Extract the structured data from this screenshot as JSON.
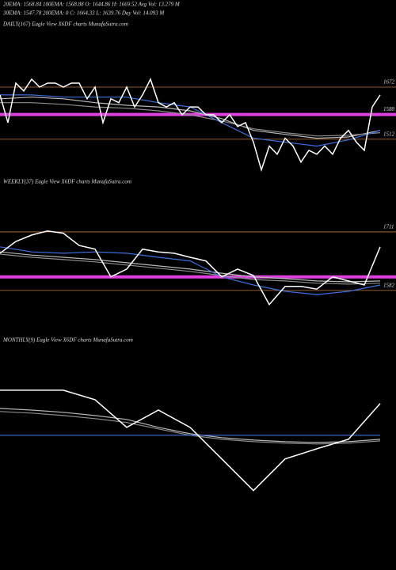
{
  "header": [
    "20EMA: 1568.84     100EMA: 1568.88     O: 1644.86     H: 1669.52     Avg Vol: 13.279 M",
    "30EMA: 1547.78     200EMA: 0     C: 1664.33     L: 1639.76     Day Vol: 14.093 M"
  ],
  "chart_data": [
    {
      "type": "line",
      "title": "DAILY(167) Eagle   View   X6DF charts MunafaSutra.com",
      "ylim": [
        1417,
        1854
      ],
      "yticks": [
        1672,
        1588,
        1512
      ],
      "levels": [
        {
          "value": 1672,
          "color": "#c0763a"
        },
        {
          "value": 1588,
          "color": "#e040e0"
        },
        {
          "value": 1512,
          "color": "#c0763a"
        }
      ],
      "series": [
        {
          "color": "#b8b8b8",
          "values": [
            1636,
            1641,
            1636,
            1624,
            1616,
            1611,
            1599,
            1575,
            1539,
            1527,
            1515,
            1519,
            1539
          ]
        },
        {
          "color": "#8c8c8c",
          "values": [
            1624,
            1624,
            1619,
            1611,
            1607,
            1599,
            1587,
            1568,
            1544,
            1532,
            1522,
            1524,
            1532
          ]
        },
        {
          "color": "#3a6fe0",
          "values": [
            1648,
            1648,
            1641,
            1641,
            1641,
            1624,
            1611,
            1563,
            1515,
            1503,
            1491,
            1510,
            1539
          ]
        },
        {
          "color": "#ffffff",
          "values": [
            1648,
            1563,
            1684,
            1660,
            1696,
            1672,
            1684,
            1684,
            1672,
            1684,
            1684,
            1636,
            1672,
            1563,
            1636,
            1624,
            1672,
            1611,
            1648,
            1696,
            1624,
            1611,
            1624,
            1587,
            1611,
            1611,
            1587,
            1587,
            1563,
            1587,
            1551,
            1563,
            1503,
            1418,
            1491,
            1466,
            1515,
            1491,
            1442,
            1478,
            1466,
            1491,
            1466,
            1515,
            1539,
            1503,
            1478,
            1611,
            1648
          ]
        }
      ]
    },
    {
      "type": "line",
      "title": "WEEKLY(37) Eagle   View   X6DF charts MunafaSutra.com",
      "ylim": [
        1533,
        1812
      ],
      "yticks": [
        1711,
        1582
      ],
      "levels": [
        {
          "value": 1711,
          "color": "#c0763a"
        },
        {
          "value": 1612,
          "color": "#e040e0"
        },
        {
          "value": 1582,
          "color": "#c0763a"
        }
      ],
      "series": [
        {
          "color": "#b8b8b8",
          "values": [
            1667,
            1660,
            1655,
            1650,
            1643,
            1636,
            1629,
            1620,
            1612,
            1608,
            1603,
            1601,
            1603
          ]
        },
        {
          "color": "#8c8c8c",
          "values": [
            1662,
            1655,
            1650,
            1645,
            1638,
            1631,
            1624,
            1615,
            1606,
            1603,
            1598,
            1596,
            1598
          ]
        },
        {
          "color": "#3a6fe0",
          "values": [
            1678,
            1667,
            1664,
            1667,
            1664,
            1655,
            1647,
            1612,
            1594,
            1580,
            1573,
            1580,
            1594
          ]
        },
        {
          "color": "#ffffff",
          "values": [
            1664,
            1690,
            1704,
            1713,
            1708,
            1681,
            1673,
            1612,
            1629,
            1673,
            1667,
            1664,
            1655,
            1647,
            1612,
            1629,
            1615,
            1551,
            1591,
            1591,
            1585,
            1612,
            1603,
            1594,
            1678
          ]
        }
      ]
    },
    {
      "type": "line",
      "title": "MONTHLY(9) Eagle   View   X6DF charts MunafaSutra.com",
      "ylim": [
        900,
        2200
      ],
      "series": [
        {
          "color": "#b8b8b8",
          "values": [
            1803,
            1793,
            1779,
            1759,
            1735,
            1686,
            1646,
            1622,
            1607,
            1597,
            1592,
            1597,
            1612
          ]
        },
        {
          "color": "#8c8c8c",
          "values": [
            1784,
            1774,
            1759,
            1740,
            1716,
            1676,
            1637,
            1612,
            1597,
            1588,
            1583,
            1588,
            1602
          ]
        },
        {
          "color": "#3a6fe0",
          "values": [
            1637,
            1637
          ]
        },
        {
          "color": "#ffffff",
          "values": [
            1916,
            1916,
            1916,
            1857,
            1686,
            1793,
            1686,
            1490,
            1294,
            1490,
            1553,
            1612,
            1833
          ]
        }
      ]
    }
  ]
}
